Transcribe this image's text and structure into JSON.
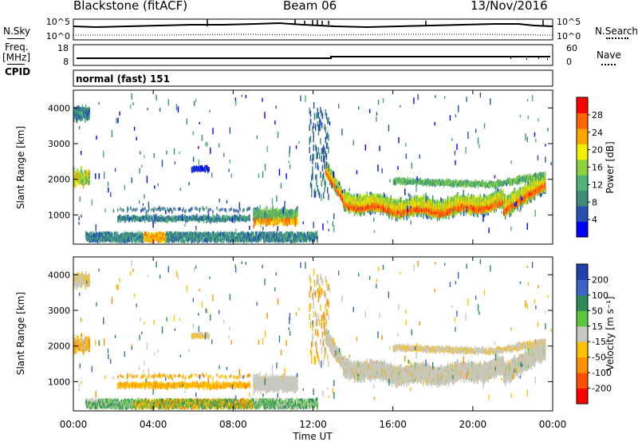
{
  "header": {
    "station": "Blackstone (fitACF)",
    "beam": "Beam 06",
    "date": "13/Nov/2016"
  },
  "panels": {
    "nsky_label": "N.Sky",
    "nsearch_label": "N.Search",
    "freq_label": "Freq.",
    "freq_unit": "[MHz]",
    "nave_label": "Nave",
    "cpid_label": "CPID",
    "cpid_value": "normal (fast) 151",
    "noise_ticks": [
      "10^5",
      "10^0"
    ],
    "freq_ticks": [
      "18",
      "8"
    ],
    "nave_ticks": [
      "60",
      "0"
    ]
  },
  "chart_data": [
    {
      "type": "heatmap",
      "name": "power",
      "xlabel": "Time UT",
      "ylabel": "Slant Range [km]",
      "xticks": [
        "00:00",
        "04:00",
        "08:00",
        "12:00",
        "16:00",
        "20:00",
        "00:00"
      ],
      "yticks": [
        1000,
        2000,
        3000,
        4000
      ],
      "xlim": [
        0,
        24
      ],
      "ylim": [
        180,
        4500
      ],
      "colorbar_label": "Power [dB]",
      "colorbar_ticks": [
        4,
        8,
        12,
        16,
        20,
        24,
        28
      ],
      "colorbar_range": [
        0,
        32
      ],
      "colors": [
        "#0000ff",
        "#2850b4",
        "#3c8c78",
        "#50b478",
        "#8cd23c",
        "#f0f000",
        "#ffa500",
        "#ff6400",
        "#ff0000"
      ]
    },
    {
      "type": "heatmap",
      "name": "velocity",
      "xlabel": "Time UT",
      "ylabel": "Slant Range [km]",
      "xticks": [
        "00:00",
        "04:00",
        "08:00",
        "12:00",
        "16:00",
        "20:00",
        "00:00"
      ],
      "yticks": [
        1000,
        2000,
        3000,
        4000
      ],
      "xlim": [
        0,
        24
      ],
      "ylim": [
        180,
        4500
      ],
      "colorbar_label": "Velocity [m s⁻¹]",
      "colorbar_ticks": [
        "200",
        "100",
        "50",
        "15",
        "-15",
        "-50",
        "-100",
        "-200"
      ],
      "colors": [
        "#2040b0",
        "#3c64c8",
        "#2e8b57",
        "#5ac83c",
        "#c8c8c0",
        "#ffc000",
        "#ff9000",
        "#ff5000",
        "#ff0000"
      ]
    }
  ]
}
